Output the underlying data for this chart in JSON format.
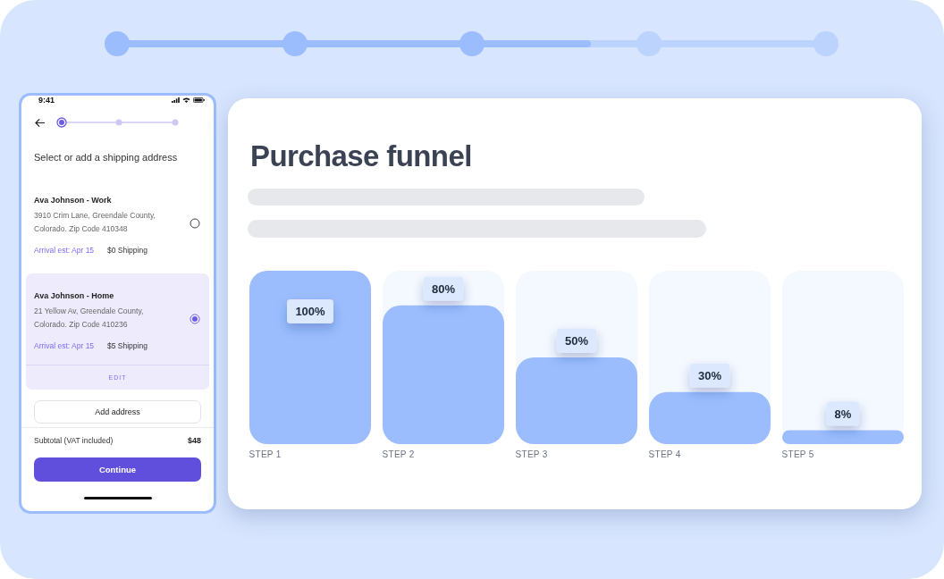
{
  "chart_data": [
    {
      "type": "other",
      "annotations": [
        "9:41",
        "Select or add a shipping address",
        "Ava Johnson - Work",
        "3910 Crim Lane, Greendale County, Colorado. Zip Code 410348",
        "Arrival est: Apr 15",
        "$0 Shipping",
        "Ava Johnson - Home",
        "21 Yellow Av, Greendale County, Colorado. Zip Code 410236",
        "Arrival est: Apr 15",
        "$5 Shipping",
        "EDIT",
        "Add address",
        "Subtotal (VAT included)",
        "$48",
        "Continue"
      ]
    },
    {
      "type": "bar",
      "title": "Purchase funnel",
      "categories": [
        "STEP 1",
        "STEP 2",
        "STEP 3",
        "STEP 4",
        "STEP 5"
      ],
      "values": [
        100,
        80,
        50,
        30,
        8
      ],
      "value_labels": [
        "100%",
        "80%",
        "50%",
        "30%",
        "8%"
      ],
      "color": "#9bbdfd",
      "ylim": [
        0,
        100
      ],
      "tick_labels": "x",
      "legend": false,
      "grid": false
    }
  ]
}
